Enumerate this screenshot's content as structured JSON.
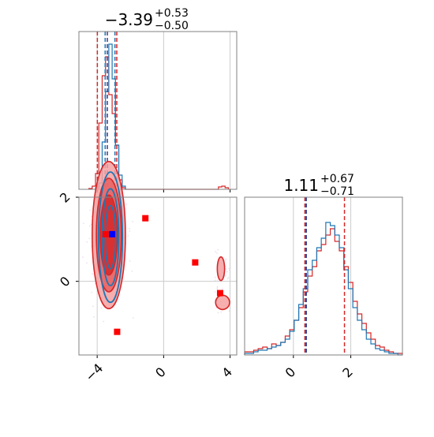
{
  "colors": {
    "red": "#d62728",
    "blue": "#1f77b4",
    "marker_red": "#ff0000",
    "marker_blue": "#0000ff",
    "grid": "#cccccc",
    "frame": "#808080",
    "fill_light": "#f4a0a0",
    "fill_mid": "#e86060",
    "fill_dark": "#d62728"
  },
  "chart_data": [
    {
      "type": "histogram",
      "panel": "top-left",
      "title": {
        "value": "−3.39",
        "plus": "+0.53",
        "minus": "−0.50"
      },
      "xlim": [
        -5.1,
        4.4
      ],
      "xticks": [
        -4,
        0,
        4
      ],
      "show_tick_labels": false,
      "grid": true,
      "quantile_lines": [
        {
          "color": "red",
          "x": [
            -3.99,
            -2.82
          ]
        },
        {
          "color": "blue",
          "x": [
            -3.52,
            -2.93
          ]
        },
        {
          "color": "darkblue",
          "x": [
            -3.39
          ]
        }
      ],
      "series": [
        {
          "name": "",
          "color": "red",
          "bins": [
            {
              "x": -4.4,
              "y": 0.005
            },
            {
              "x": -4.2,
              "y": 0.02
            },
            {
              "x": -4.0,
              "y": 0.1
            },
            {
              "x": -3.8,
              "y": 0.42
            },
            {
              "x": -3.6,
              "y": 0.72
            },
            {
              "x": -3.4,
              "y": 0.84
            },
            {
              "x": -3.2,
              "y": 0.6
            },
            {
              "x": -3.0,
              "y": 0.48
            },
            {
              "x": -2.8,
              "y": 0.28
            },
            {
              "x": -2.6,
              "y": 0.06
            },
            {
              "x": -2.4,
              "y": 0.01
            },
            {
              "x": 3.4,
              "y": 0.015
            },
            {
              "x": 3.6,
              "y": 0.02
            },
            {
              "x": 3.8,
              "y": 0.01
            }
          ]
        },
        {
          "name": "",
          "color": "blue",
          "bins": [
            {
              "x": -4.0,
              "y": 0.01
            },
            {
              "x": -3.8,
              "y": 0.04
            },
            {
              "x": -3.6,
              "y": 0.3
            },
            {
              "x": -3.4,
              "y": 0.62
            },
            {
              "x": -3.2,
              "y": 0.92
            },
            {
              "x": -3.0,
              "y": 0.7
            },
            {
              "x": -2.8,
              "y": 0.28
            },
            {
              "x": -2.6,
              "y": 0.09
            },
            {
              "x": -2.4,
              "y": 0.02
            }
          ]
        }
      ]
    },
    {
      "type": "histogram",
      "panel": "bottom-right",
      "title": {
        "value": "1.11",
        "plus": "+0.67",
        "minus": "−0.71"
      },
      "xlim": [
        -1.7,
        3.8
      ],
      "xticks": [
        0,
        2
      ],
      "xticklabels": [
        "0",
        "2"
      ],
      "grid": true,
      "quantile_lines": [
        {
          "color": "red",
          "x": [
            0.4,
            1.78
          ]
        },
        {
          "color": "blue",
          "x": [
            0.43
          ]
        },
        {
          "color": "darkblue",
          "x": [
            0.45
          ]
        }
      ],
      "series": [
        {
          "name": "",
          "color": "red",
          "values": [
            0.02,
            0.02,
            0.03,
            0.04,
            0.05,
            0.04,
            0.07,
            0.06,
            0.08,
            0.12,
            0.16,
            0.22,
            0.3,
            0.4,
            0.5,
            0.56,
            0.66,
            0.7,
            0.76,
            0.8,
            0.72,
            0.66,
            0.56,
            0.46,
            0.34,
            0.26,
            0.2,
            0.14,
            0.1,
            0.06,
            0.05,
            0.03,
            0.02,
            0.01,
            0.01
          ]
        },
        {
          "name": "",
          "color": "blue",
          "values": [
            0.01,
            0.01,
            0.02,
            0.03,
            0.03,
            0.04,
            0.05,
            0.06,
            0.08,
            0.1,
            0.15,
            0.22,
            0.32,
            0.42,
            0.54,
            0.6,
            0.68,
            0.74,
            0.84,
            0.82,
            0.76,
            0.68,
            0.54,
            0.42,
            0.3,
            0.22,
            0.16,
            0.1,
            0.07,
            0.04,
            0.03,
            0.02,
            0.01,
            0.01,
            0.0
          ]
        }
      ]
    },
    {
      "type": "scatter",
      "panel": "bottom-left",
      "xlim": [
        -5.1,
        4.4
      ],
      "ylim": [
        -1.75,
        2.0
      ],
      "xticks": [
        -4,
        0,
        4
      ],
      "xticklabels": [
        "−4",
        "0",
        "4"
      ],
      "yticks": [
        0,
        2
      ],
      "yticklabels": [
        "0",
        "2"
      ],
      "grid": true,
      "contours": [
        {
          "color": "red",
          "cx": -3.3,
          "cy": 1.1,
          "rx": 1.0,
          "ry": 1.75,
          "level": "outer"
        },
        {
          "color": "red",
          "cx": -3.3,
          "cy": 1.1,
          "rx": 0.75,
          "ry": 1.35,
          "level": "mid"
        },
        {
          "color": "red",
          "cx": -3.3,
          "cy": 1.1,
          "rx": 0.52,
          "ry": 0.95,
          "level": "inner"
        },
        {
          "color": "blue",
          "cx": -3.2,
          "cy": 1.05,
          "rx": 0.72,
          "ry": 1.55,
          "level": "outer"
        },
        {
          "color": "blue",
          "cx": -3.2,
          "cy": 1.05,
          "rx": 0.5,
          "ry": 1.15,
          "level": "mid"
        },
        {
          "color": "blue",
          "cx": -3.2,
          "cy": 1.05,
          "rx": 0.32,
          "ry": 0.75,
          "level": "inner"
        },
        {
          "color": "red",
          "cx": 3.45,
          "cy": 0.3,
          "rx": 0.22,
          "ry": 0.28,
          "level": "island"
        },
        {
          "color": "red",
          "cx": 3.55,
          "cy": -0.5,
          "rx": 0.42,
          "ry": 0.17,
          "level": "island"
        }
      ],
      "markers": [
        {
          "x": -3.5,
          "y": 1.12,
          "color": "marker_red"
        },
        {
          "x": -1.1,
          "y": 1.5,
          "color": "marker_red"
        },
        {
          "x": 1.9,
          "y": 0.45,
          "color": "marker_red"
        },
        {
          "x": 3.4,
          "y": -0.28,
          "color": "marker_red"
        },
        {
          "x": -2.8,
          "y": -1.2,
          "color": "marker_red"
        },
        {
          "x": -3.1,
          "y": 1.12,
          "color": "marker_blue"
        }
      ]
    }
  ]
}
